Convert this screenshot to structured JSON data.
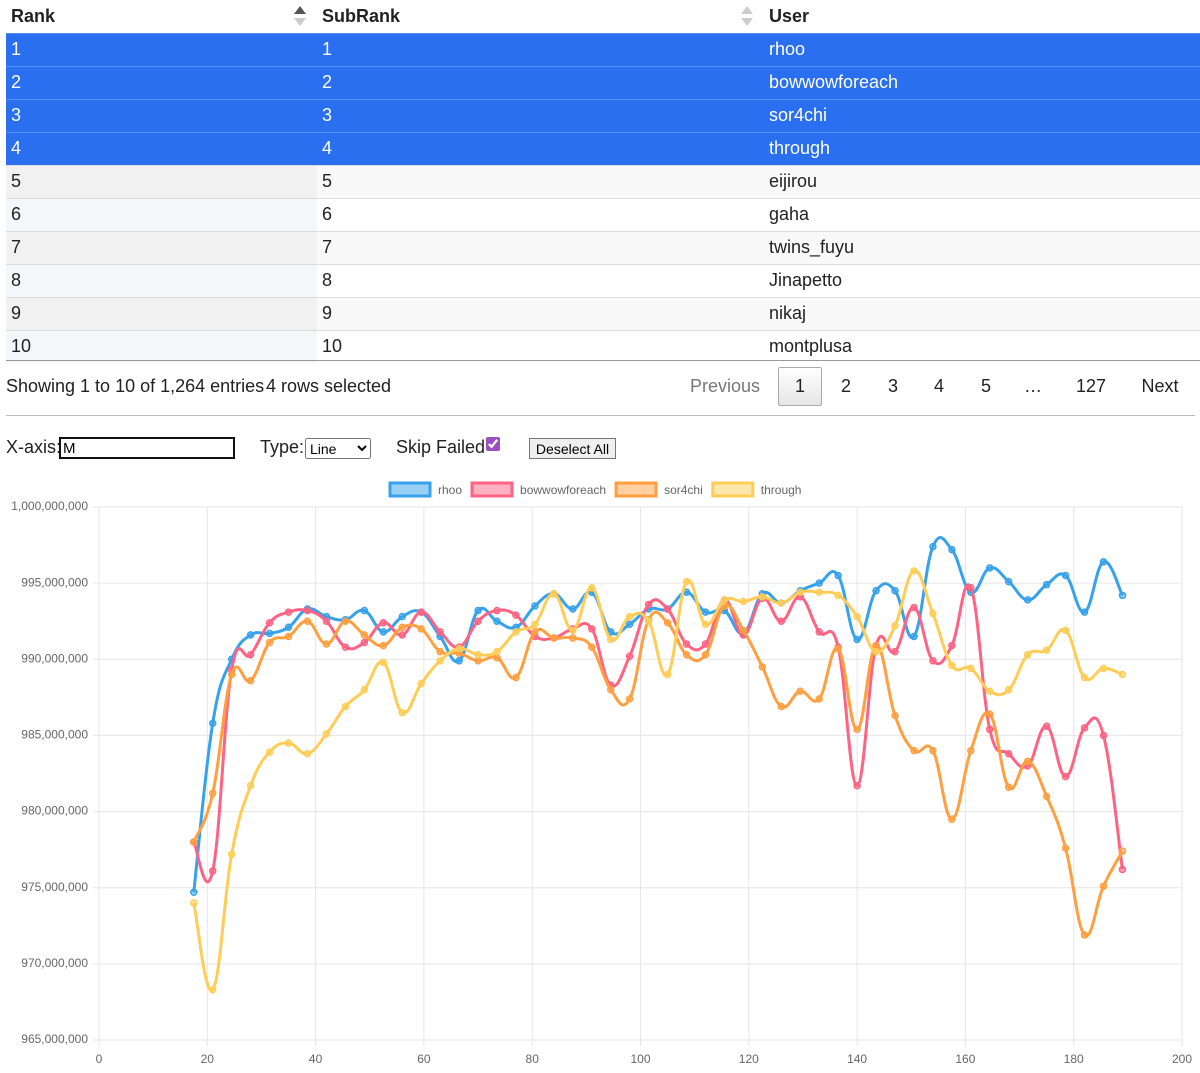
{
  "table": {
    "columns": [
      "Rank",
      "SubRank",
      "User"
    ],
    "rows": [
      [
        1,
        1,
        "rhoo"
      ],
      [
        2,
        2,
        "bowwowforeach"
      ],
      [
        3,
        3,
        "sor4chi"
      ],
      [
        4,
        4,
        "through"
      ],
      [
        5,
        5,
        "eijirou"
      ],
      [
        6,
        6,
        "gaha"
      ],
      [
        7,
        7,
        "twins_fuyu"
      ],
      [
        8,
        8,
        "Jinapetto"
      ],
      [
        9,
        9,
        "nikaj"
      ],
      [
        10,
        10,
        "montplusa"
      ]
    ],
    "selected": [
      true,
      true,
      true,
      true,
      false,
      false,
      false,
      false,
      false,
      false
    ]
  },
  "info": {
    "showing": "Showing 1 to 10 of 1,264 entries",
    "selection": "4 rows selected"
  },
  "pagination": {
    "items": [
      "Previous",
      "1",
      "2",
      "3",
      "4",
      "5",
      "…",
      "127",
      "Next"
    ],
    "current": 1
  },
  "controls": {
    "x_axis_label": "X-axis:",
    "x_axis_value": "M",
    "type_label": "Type:",
    "type_value": "Line",
    "skip_failed_label": "Skip Failed",
    "skip_failed_checked": true,
    "button": "Deselect All"
  },
  "chart_data": {
    "type": "line",
    "x": [
      17.5,
      21,
      24.5,
      28,
      31.5,
      35,
      38.5,
      42,
      45.5,
      49,
      52.5,
      56,
      59.5,
      63,
      66.5,
      70,
      73.5,
      77,
      80.5,
      84,
      87.5,
      91,
      94.5,
      98,
      101.5,
      105,
      108.5,
      112,
      115.5,
      119,
      122.5,
      126,
      129.5,
      133,
      136.5,
      140,
      143.5,
      147,
      150.5,
      154,
      157.5,
      161,
      164.5,
      168,
      171.5,
      175,
      178.5,
      182,
      185.5,
      189
    ],
    "series": [
      {
        "name": "rhoo",
        "color": "#36a2eb",
        "values": [
          974700000,
          985800000,
          990000000,
          991600000,
          991700000,
          992100000,
          993300000,
          992800000,
          992600000,
          993200000,
          991800000,
          992800000,
          993100000,
          991500000,
          989900000,
          993200000,
          992500000,
          992100000,
          993500000,
          994300000,
          993300000,
          994400000,
          991800000,
          992300000,
          993300000,
          993300000,
          994400000,
          993100000,
          993200000,
          991700000,
          994300000,
          993700000,
          994500000,
          995000000,
          995500000,
          991300000,
          994500000,
          994500000,
          991500000,
          997400000,
          997200000,
          994400000,
          996000000,
          995100000,
          993900000,
          994900000,
          995500000,
          993100000,
          996400000,
          994200000
        ]
      },
      {
        "name": "bowwowforeach",
        "color": "#ff6384",
        "values": [
          978000000,
          976100000,
          989300000,
          990300000,
          992400000,
          993100000,
          993200000,
          992500000,
          990800000,
          991100000,
          992400000,
          991600000,
          993100000,
          991800000,
          990800000,
          992500000,
          993200000,
          992900000,
          991500000,
          991400000,
          992000000,
          992000000,
          988300000,
          990200000,
          993600000,
          993300000,
          991000000,
          991000000,
          993900000,
          991600000,
          994000000,
          992500000,
          994100000,
          991800000,
          990800000,
          981700000,
          990900000,
          990500000,
          993400000,
          989900000,
          990900000,
          994700000,
          985400000,
          983800000,
          983000000,
          985600000,
          982300000,
          985500000,
          985000000,
          976200000
        ]
      },
      {
        "name": "sor4chi",
        "color": "#ff9f40",
        "values": [
          978000000,
          981200000,
          989000000,
          988600000,
          991100000,
          991500000,
          992500000,
          991000000,
          992500000,
          991600000,
          990900000,
          992100000,
          992000000,
          990500000,
          990400000,
          989900000,
          990100000,
          988800000,
          991800000,
          991400000,
          991400000,
          990800000,
          988000000,
          987400000,
          992600000,
          992400000,
          990300000,
          990300000,
          993500000,
          991900000,
          989500000,
          986900000,
          987900000,
          987400000,
          990700000,
          985400000,
          990900000,
          986300000,
          984000000,
          984000000,
          979500000,
          984000000,
          986400000,
          981600000,
          983300000,
          981000000,
          977600000,
          971900000,
          975100000,
          977400000
        ]
      },
      {
        "name": "through",
        "color": "#ffcd56",
        "values": [
          974000000,
          968300000,
          977200000,
          981700000,
          983900000,
          984500000,
          983800000,
          985100000,
          986900000,
          988000000,
          989800000,
          986500000,
          988400000,
          989900000,
          990700000,
          990300000,
          990500000,
          991800000,
          992300000,
          994300000,
          991900000,
          994700000,
          991300000,
          992800000,
          992500000,
          989000000,
          995100000,
          992300000,
          993900000,
          993800000,
          994100000,
          993700000,
          994400000,
          994400000,
          994200000,
          992800000,
          990500000,
          992200000,
          995800000,
          993000000,
          989600000,
          989400000,
          987900000,
          988000000,
          990300000,
          990600000,
          991900000,
          988800000,
          989400000,
          989000000
        ]
      }
    ],
    "xlim": [
      0,
      200
    ],
    "xticks": [
      0,
      20,
      40,
      60,
      80,
      100,
      120,
      140,
      160,
      180,
      200
    ],
    "ylim": [
      965000000,
      1000000000
    ],
    "yticks": [
      {
        "value": 965000000,
        "label": "965,000,000"
      },
      {
        "value": 970000000,
        "label": "970,000,000"
      },
      {
        "value": 975000000,
        "label": "975,000,000"
      },
      {
        "value": 980000000,
        "label": "980,000,000"
      },
      {
        "value": 985000000,
        "label": "985,000,000"
      },
      {
        "value": 990000000,
        "label": "990,000,000"
      },
      {
        "value": 995000000,
        "label": "995,000,000"
      },
      {
        "value": 1000000000,
        "label": "1,000,000,000"
      }
    ],
    "grid": true,
    "legend": "top"
  }
}
